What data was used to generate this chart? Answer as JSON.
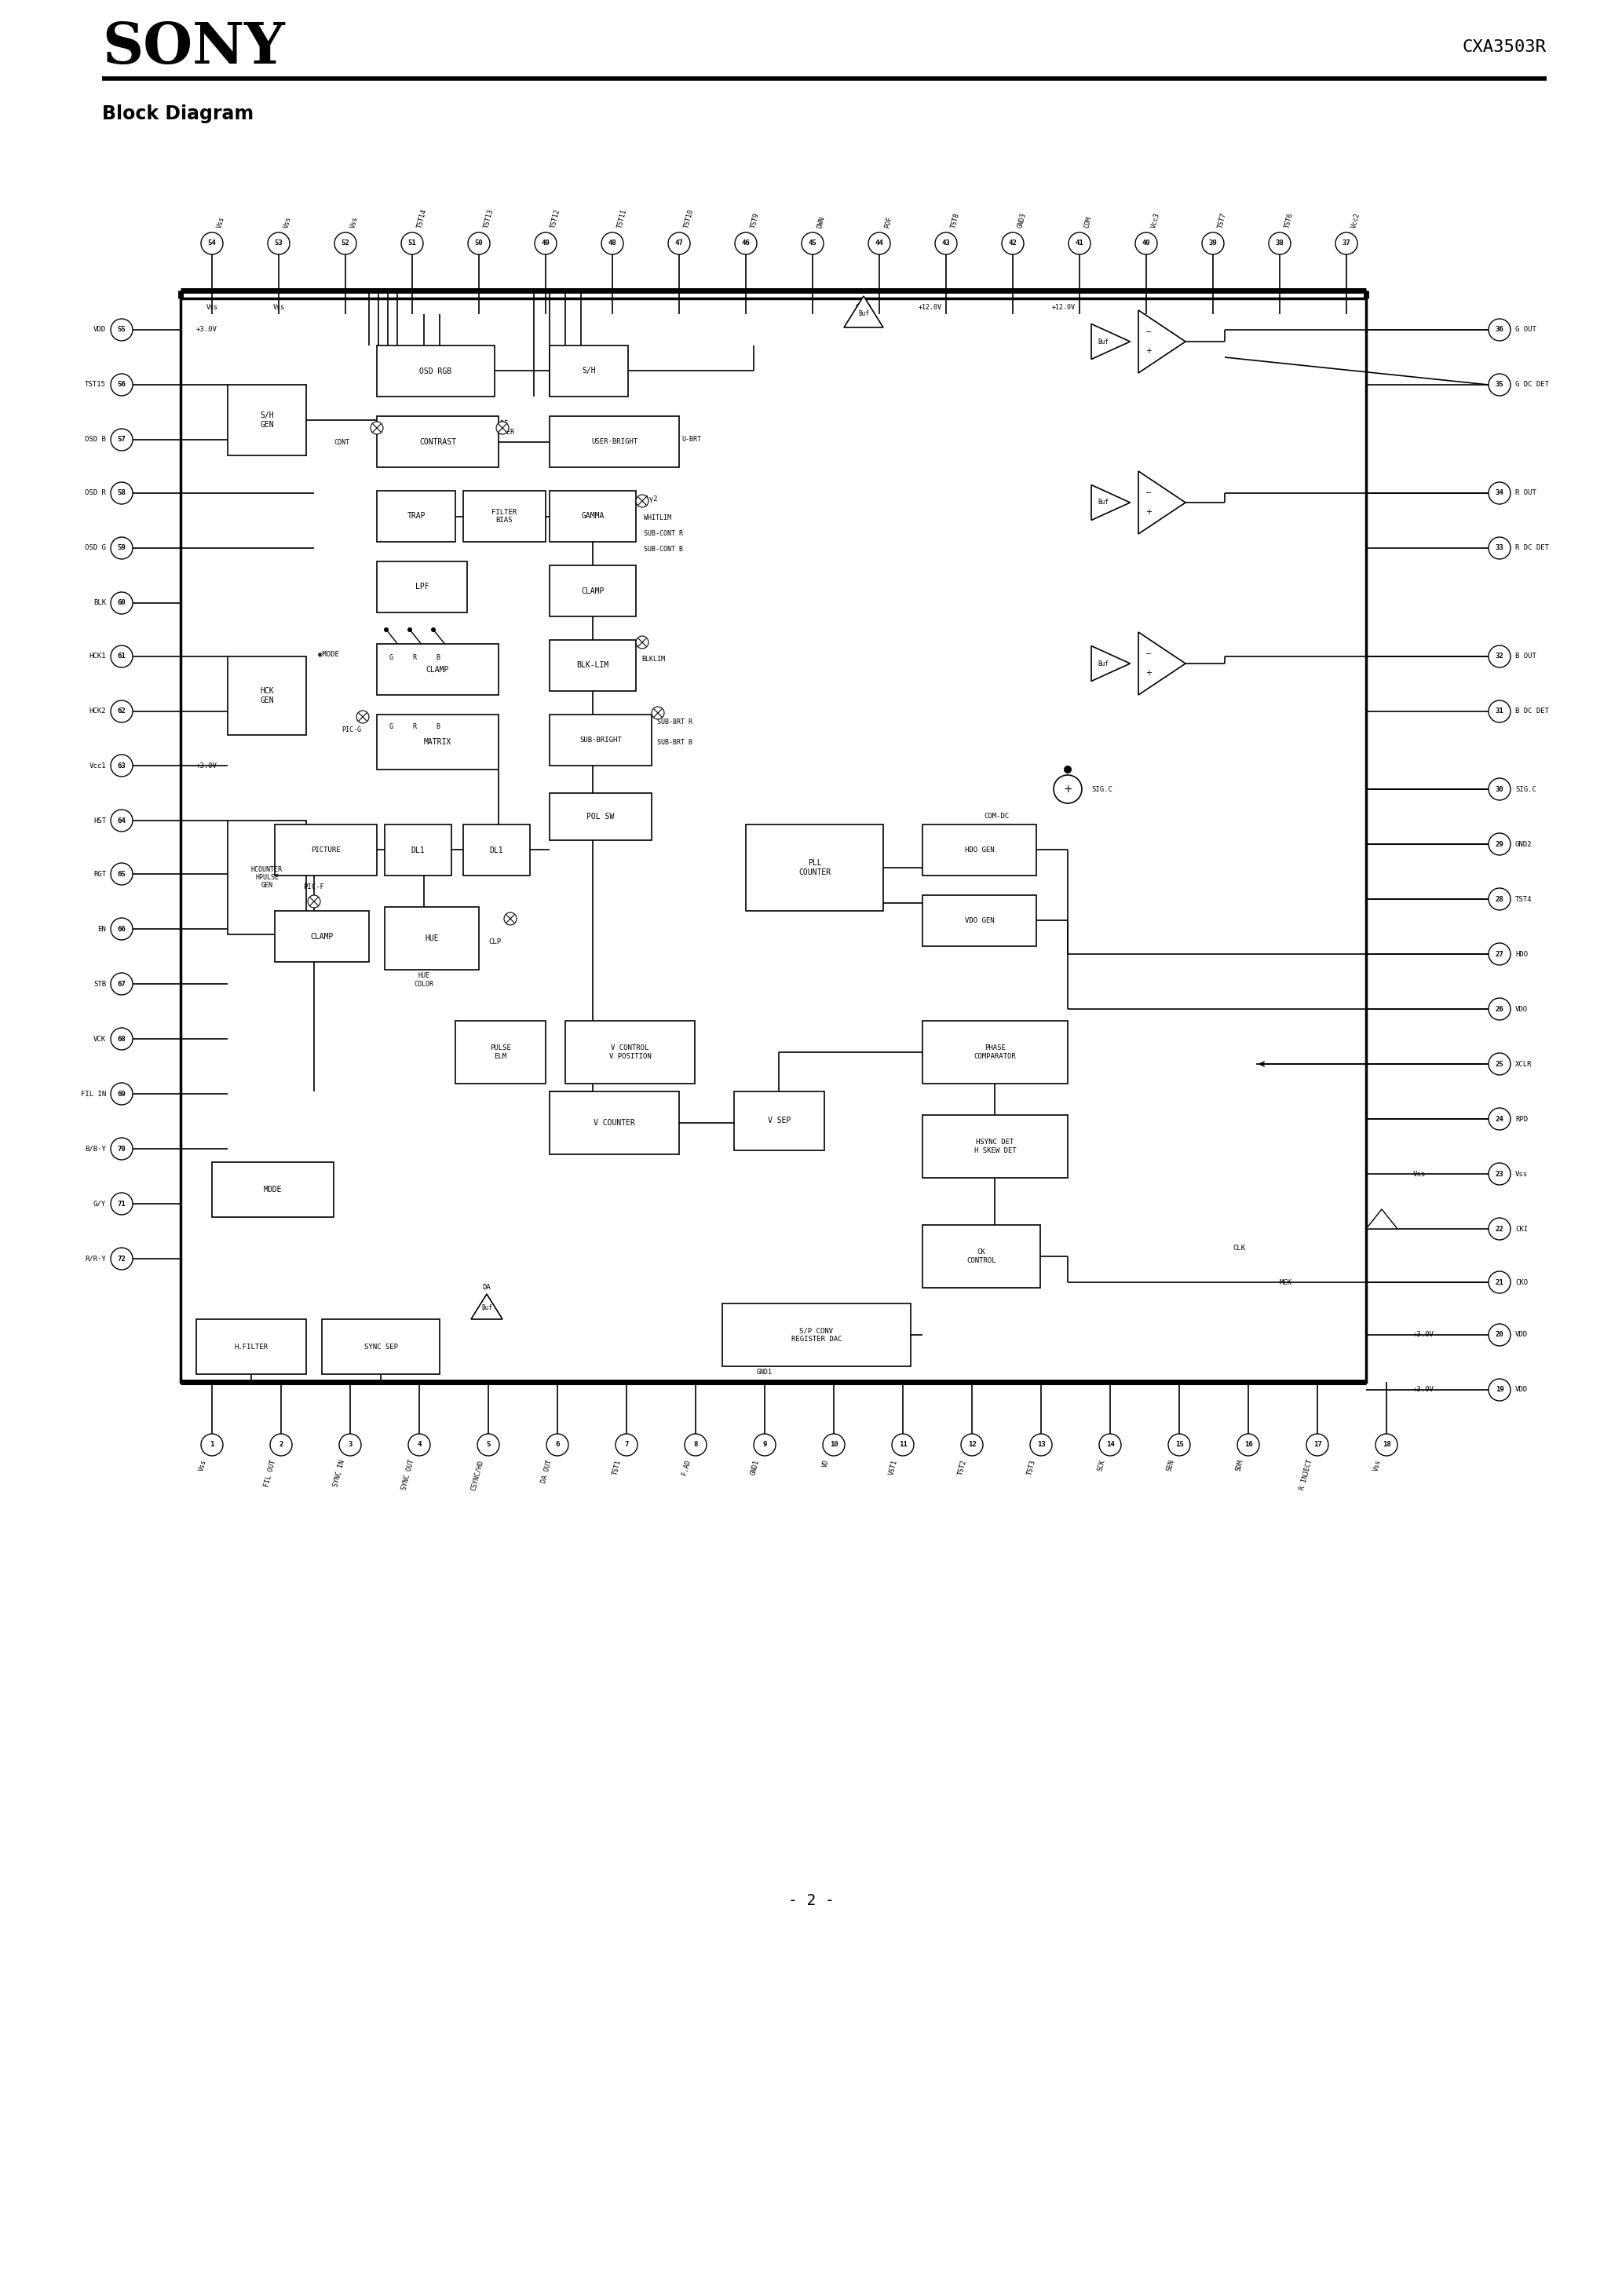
{
  "page_width": 20.66,
  "page_height": 29.24,
  "bg_color": "#ffffff",
  "header_title": "SONY",
  "header_right": "CXA3503R",
  "section_title": "Block Diagram",
  "footer_text": "- 2 -"
}
